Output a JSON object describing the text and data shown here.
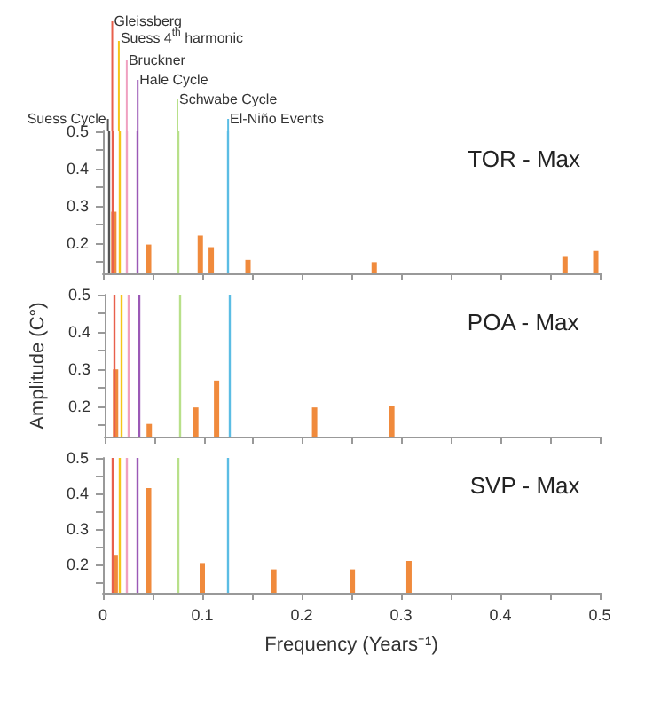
{
  "chart_data": [
    {
      "type": "bar",
      "title": "TOR - Max",
      "color": "#f08a3c",
      "x": [
        0.011,
        0.046,
        0.098,
        0.109,
        0.146,
        0.273,
        0.465,
        0.496
      ],
      "values": [
        0.285,
        0.197,
        0.221,
        0.19,
        0.156,
        0.15,
        0.164,
        0.18
      ],
      "xlim": [
        0,
        0.5
      ],
      "xticks": [
        0,
        {
          "value": 0.05,
          "label": null
        },
        0.1,
        {
          "value": 0.15,
          "label": null
        },
        0.2,
        {
          "value": 0.25,
          "label": null
        },
        0.3,
        {
          "value": 0.35,
          "label": null
        },
        0.4,
        {
          "value": 0.45,
          "label": null
        },
        0.5
      ],
      "ylim": [
        0.12,
        0.5
      ],
      "yticks": [
        {
          "value": 0.15,
          "label": null
        },
        0.2,
        {
          "value": 0.25,
          "label": null
        },
        0.3,
        {
          "value": 0.35,
          "label": null
        },
        0.4,
        {
          "value": 0.45,
          "label": null
        },
        0.5
      ],
      "tick_labels": "y",
      "ref_lines": [
        {
          "axis": "x",
          "value": 0.005,
          "label": "Suess Cycle",
          "color": "#555555"
        },
        {
          "axis": "x",
          "value": 0.0094,
          "label": "Gleissberg",
          "color": "#e8604c"
        },
        {
          "axis": "x",
          "value": 0.016,
          "label": "Suess 4$^{th}$ harmonic",
          "color": "#f5c518"
        },
        {
          "axis": "x",
          "value": 0.024,
          "label": "Bruckner",
          "color": "#f0a0c0"
        },
        {
          "axis": "x",
          "value": 0.035,
          "label": "Hale Cycle",
          "color": "#9b59b6"
        },
        {
          "axis": "x",
          "value": 0.075,
          "label": "Schwabe Cycle",
          "color": "#b8e08a"
        },
        {
          "axis": "x",
          "value": 0.126,
          "label": "El-Niño Events",
          "color": "#5bbde4"
        }
      ]
    },
    {
      "type": "bar",
      "title": "POA - Max",
      "color": "#f08a3c",
      "ylabel": "Amplitude (C°)",
      "x": [
        0.011,
        0.045,
        0.092,
        0.113,
        0.212,
        0.29
      ],
      "values": [
        0.3,
        0.154,
        0.198,
        0.27,
        0.198,
        0.203
      ],
      "xlim": [
        0,
        0.5
      ],
      "xticks": [
        0,
        {
          "value": 0.05,
          "label": null
        },
        0.1,
        {
          "value": 0.15,
          "label": null
        },
        0.2,
        {
          "value": 0.25,
          "label": null
        },
        0.3,
        {
          "value": 0.35,
          "label": null
        },
        0.4,
        {
          "value": 0.45,
          "label": null
        },
        0.5
      ],
      "ylim": [
        0.12,
        0.5
      ],
      "yticks": [
        {
          "value": 0.15,
          "label": null
        },
        0.2,
        {
          "value": 0.25,
          "label": null
        },
        0.3,
        {
          "value": 0.35,
          "label": null
        },
        0.4,
        {
          "value": 0.45,
          "label": null
        },
        0.5
      ],
      "tick_labels": "y",
      "ref_lines": [
        {
          "axis": "x",
          "value": 0.0094,
          "color": "#e8604c"
        },
        {
          "axis": "x",
          "value": 0.016,
          "color": "#f5c518"
        },
        {
          "axis": "x",
          "value": 0.024,
          "color": "#f0a0c0"
        },
        {
          "axis": "x",
          "value": 0.035,
          "color": "#9b59b6"
        },
        {
          "axis": "x",
          "value": 0.075,
          "color": "#b8e08a"
        },
        {
          "axis": "x",
          "value": 0.126,
          "color": "#5bbde4"
        }
      ]
    },
    {
      "type": "bar",
      "title": "SVP - Max",
      "color": "#f08a3c",
      "xlabel": "Frequency (Years⁻¹)",
      "x": [
        0.0124,
        0.046,
        0.1,
        0.172,
        0.251,
        0.308
      ],
      "values": [
        0.227,
        0.415,
        0.204,
        0.186,
        0.186,
        0.21
      ],
      "xlim": [
        0,
        0.5
      ],
      "xticks": [
        0,
        {
          "value": 0.05,
          "label": null
        },
        0.1,
        {
          "value": 0.15,
          "label": null
        },
        0.2,
        {
          "value": 0.25,
          "label": null
        },
        0.3,
        {
          "value": 0.35,
          "label": null
        },
        0.4,
        {
          "value": 0.45,
          "label": null
        },
        0.5
      ],
      "ylim": [
        0.12,
        0.5
      ],
      "yticks": [
        {
          "value": 0.15,
          "label": null
        },
        0.2,
        {
          "value": 0.25,
          "label": null
        },
        0.3,
        {
          "value": 0.35,
          "label": null
        },
        0.4,
        {
          "value": 0.45,
          "label": null
        },
        0.5
      ],
      "ref_lines": [
        {
          "axis": "x",
          "value": 0.0094,
          "color": "#e8604c"
        },
        {
          "axis": "x",
          "value": 0.016,
          "color": "#f5c518"
        },
        {
          "axis": "x",
          "value": 0.024,
          "color": "#f0a0c0"
        },
        {
          "axis": "x",
          "value": 0.035,
          "color": "#9b59b6"
        },
        {
          "axis": "x",
          "value": 0.075,
          "color": "#b8e08a"
        },
        {
          "axis": "x",
          "value": 0.126,
          "color": "#5bbde4"
        }
      ]
    }
  ]
}
